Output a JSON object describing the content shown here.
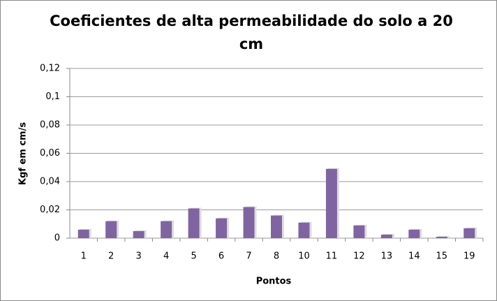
{
  "chart_data": {
    "type": "bar",
    "title": "Coeficientes de alta permeabilidade do solo a 20 cm",
    "x_label": "Pontos",
    "y_label": "Kgf em cm/s",
    "categories": [
      "1",
      "2",
      "3",
      "4",
      "5",
      "6",
      "7",
      "8",
      "10",
      "11",
      "12",
      "13",
      "14",
      "15",
      "19"
    ],
    "values": [
      0.006,
      0.012,
      0.005,
      0.012,
      0.021,
      0.014,
      0.022,
      0.016,
      0.011,
      0.049,
      0.009,
      0.0025,
      0.006,
      0.001,
      0.007
    ],
    "color": "#8064a2",
    "ylim": [
      0,
      0.12
    ],
    "yticks": [
      0,
      {
        "value": 0.02,
        "label": "0,02"
      },
      {
        "value": 0.04,
        "label": "0,04"
      },
      {
        "value": 0.06,
        "label": "0,06"
      },
      {
        "value": 0.08,
        "label": "0,08"
      },
      {
        "value": 0.1,
        "label": "0,1"
      },
      {
        "value": 0.12,
        "label": "0,12"
      }
    ],
    "grid": true
  }
}
